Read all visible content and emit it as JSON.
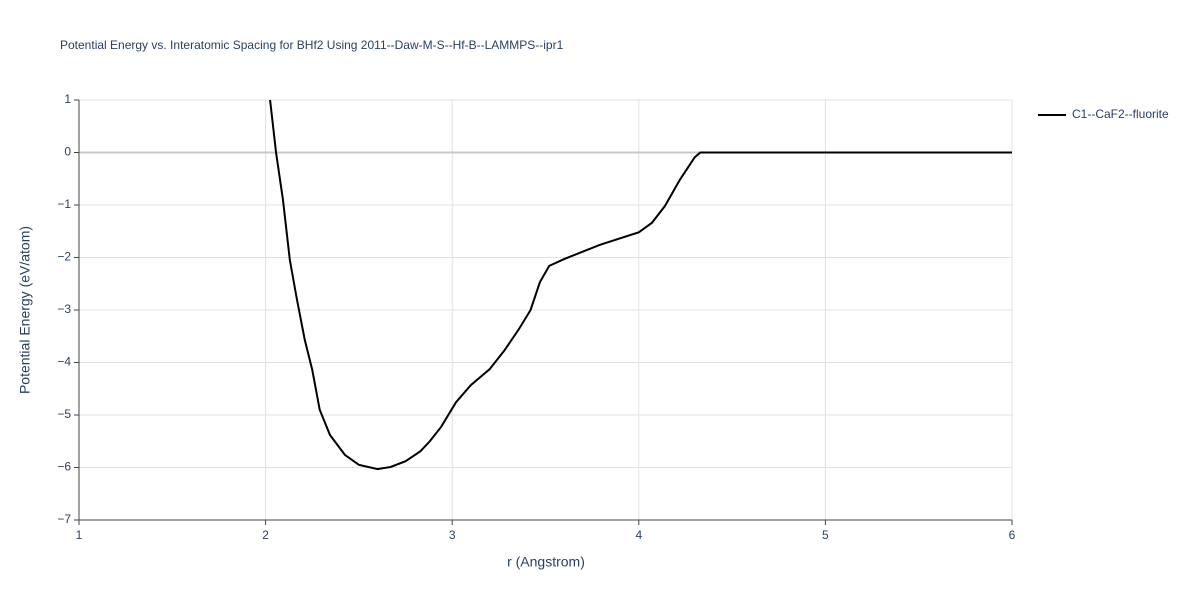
{
  "chart_data": {
    "type": "line",
    "title": "Potential Energy vs. Interatomic Spacing for BHf2 Using 2011--Daw-M-S--Hf-B--LAMMPS--ipr1",
    "x_label": "r (Angstrom)",
    "y_label": "Potential Energy (eV/atom)",
    "xlim": [
      1,
      6
    ],
    "ylim": [
      -7,
      1
    ],
    "xticks": [
      1,
      2,
      3,
      4,
      5,
      6
    ],
    "yticks": [
      {
        "value": -7,
        "label": "−7"
      },
      {
        "value": -6,
        "label": "−6"
      },
      {
        "value": -5,
        "label": "−5"
      },
      {
        "value": -4,
        "label": "−4"
      },
      {
        "value": -3,
        "label": "−3"
      },
      {
        "value": -2,
        "label": "−2"
      },
      {
        "value": -1,
        "label": "−1"
      },
      0,
      1
    ],
    "grid": true,
    "legend_position": "right",
    "series": [
      {
        "name": "C1--CaF2--fluorite",
        "color": "#000000",
        "x": [
          2.024,
          2.056,
          2.093,
          2.13,
          2.168,
          2.21,
          2.25,
          2.29,
          2.345,
          2.425,
          2.5,
          2.6,
          2.67,
          2.75,
          2.83,
          2.88,
          2.94,
          3.02,
          3.1,
          3.2,
          3.28,
          3.36,
          3.42,
          3.47,
          3.52,
          3.6,
          3.79,
          4.0,
          4.07,
          4.14,
          4.22,
          4.3,
          4.33,
          6
        ],
        "values": [
          1,
          0,
          -0.9,
          -2.05,
          -2.8,
          -3.57,
          -4.14,
          -4.9,
          -5.38,
          -5.76,
          -5.95,
          -6.03,
          -5.99,
          -5.88,
          -5.69,
          -5.5,
          -5.23,
          -4.76,
          -4.43,
          -4.13,
          -3.77,
          -3.35,
          -3.0,
          -2.47,
          -2.16,
          -2.03,
          -1.76,
          -1.52,
          -1.34,
          -1.02,
          -0.52,
          -0.09,
          0,
          0
        ]
      }
    ]
  }
}
